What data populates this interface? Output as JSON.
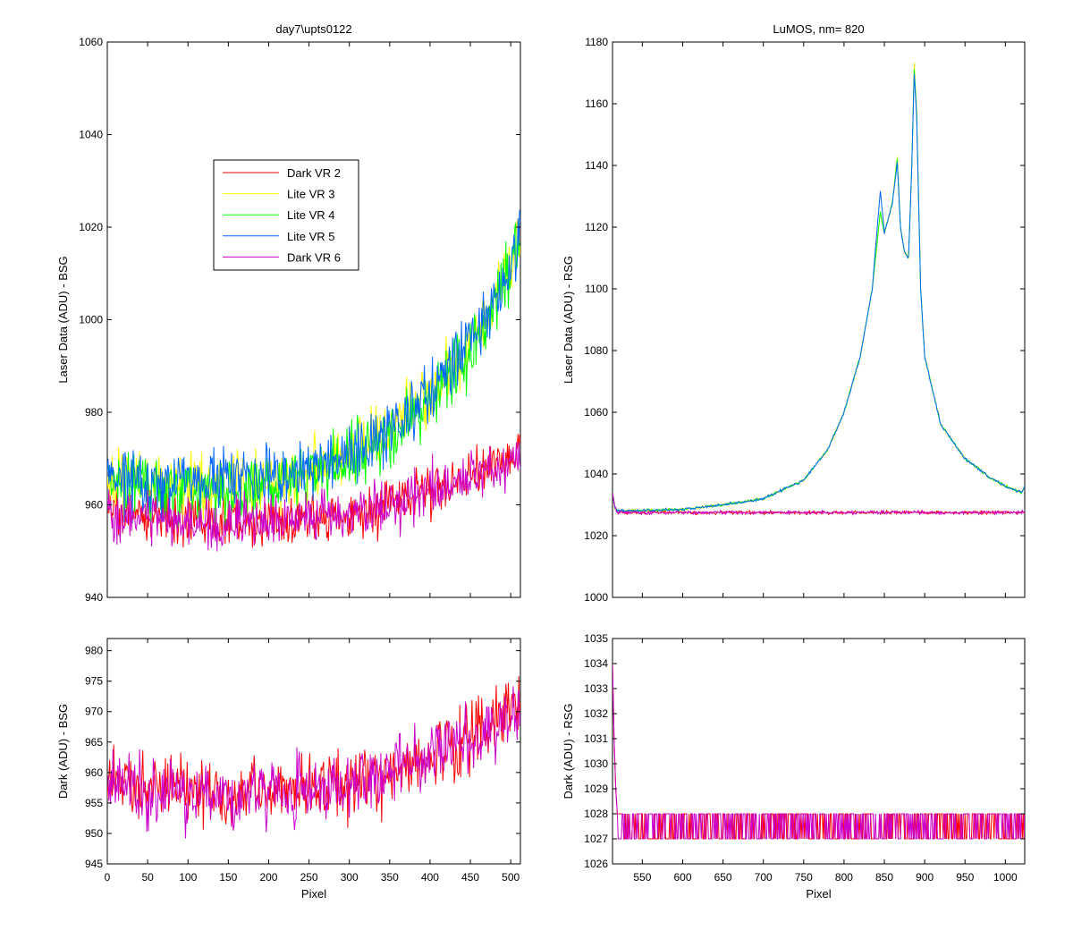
{
  "chart_data": [
    {
      "id": "top-left",
      "type": "line",
      "title": "day7\\upts0122",
      "xlabel": "",
      "ylabel": "Laser Data (ADU) - BSG",
      "xlim": [
        0,
        512
      ],
      "ylim": [
        940,
        1060
      ],
      "xticks": [
        0,
        50,
        100,
        150,
        200,
        250,
        300,
        350,
        400,
        450,
        500
      ],
      "show_xtick_labels": false,
      "yticks": [
        940,
        960,
        980,
        1000,
        1020,
        1040,
        1060
      ],
      "grid": false,
      "legend": {
        "placement": "upper-left-inside",
        "entries": [
          {
            "label": "Dark VR 2",
            "color": "#ff0000"
          },
          {
            "label": "Lite VR 3",
            "color": "#ffff00"
          },
          {
            "label": "Lite VR 4",
            "color": "#00ff00"
          },
          {
            "label": "Lite VR 5",
            "color": "#0066ff"
          },
          {
            "label": "Dark VR 6",
            "color": "#cc00cc"
          }
        ]
      },
      "series": [
        {
          "name": "Dark VR 2",
          "color": "#ff0000",
          "x": [
            0,
            50,
            100,
            150,
            200,
            250,
            300,
            350,
            400,
            450,
            500,
            512
          ],
          "y": [
            959,
            958,
            957,
            956,
            957,
            957,
            958,
            960,
            963,
            966,
            970,
            971
          ],
          "noise": 5
        },
        {
          "name": "Lite VR 3",
          "color": "#ffff00",
          "x": [
            0,
            50,
            100,
            150,
            200,
            250,
            300,
            350,
            400,
            450,
            500,
            512
          ],
          "y": [
            966,
            965,
            964,
            964,
            965,
            967,
            971,
            976,
            984,
            994,
            1010,
            1020
          ],
          "noise": 6
        },
        {
          "name": "Lite VR 4",
          "color": "#00ff00",
          "x": [
            0,
            50,
            100,
            150,
            200,
            250,
            300,
            350,
            400,
            450,
            500,
            512
          ],
          "y": [
            965,
            964,
            963,
            963,
            964,
            966,
            970,
            975,
            983,
            993,
            1010,
            1019
          ],
          "noise": 6
        },
        {
          "name": "Lite VR 5",
          "color": "#0066ff",
          "x": [
            0,
            50,
            100,
            150,
            200,
            250,
            300,
            350,
            400,
            450,
            500,
            512
          ],
          "y": [
            966,
            965,
            965,
            965,
            966,
            968,
            971,
            976,
            984,
            995,
            1011,
            1020
          ],
          "noise": 6
        },
        {
          "name": "Dark VR 6",
          "color": "#cc00cc",
          "x": [
            0,
            50,
            100,
            150,
            200,
            250,
            300,
            350,
            400,
            450,
            500,
            512
          ],
          "y": [
            958,
            957,
            956,
            956,
            957,
            957,
            958,
            960,
            963,
            966,
            969,
            970
          ],
          "noise": 5
        }
      ]
    },
    {
      "id": "top-right",
      "type": "line",
      "title": "LuMOS, nm= 820",
      "xlabel": "",
      "ylabel": "Laser Data (ADU) - RSG",
      "xlim": [
        513,
        1024
      ],
      "ylim": [
        1000,
        1180
      ],
      "xticks": [
        550,
        600,
        650,
        700,
        750,
        800,
        850,
        900,
        950,
        1000
      ],
      "show_xtick_labels": false,
      "yticks": [
        1000,
        1020,
        1040,
        1060,
        1080,
        1100,
        1120,
        1140,
        1160,
        1180
      ],
      "grid": false,
      "series": [
        {
          "name": "Dark VR 2",
          "color": "#ff0000",
          "x": [
            513,
            516,
            520,
            1024
          ],
          "y": [
            1034,
            1029,
            1027.5,
            1027.5
          ],
          "noise": 0.5
        },
        {
          "name": "Lite VR 3",
          "color": "#ffff00",
          "x": [
            513,
            516,
            520,
            600,
            650,
            700,
            750,
            780,
            800,
            820,
            835,
            845,
            850,
            860,
            866,
            870,
            875,
            880,
            884,
            887,
            890,
            895,
            900,
            920,
            950,
            980,
            1000,
            1020,
            1024
          ],
          "y": [
            1034,
            1029,
            1028,
            1028.5,
            1030,
            1032,
            1038,
            1048,
            1060,
            1078,
            1100,
            1125,
            1118,
            1128,
            1143,
            1120,
            1112,
            1110,
            1140,
            1173,
            1158,
            1100,
            1078,
            1056,
            1045,
            1039,
            1036,
            1034,
            1036
          ],
          "noise": 0.4
        },
        {
          "name": "Lite VR 4",
          "color": "#00ff00",
          "x": [
            513,
            516,
            520,
            600,
            650,
            700,
            750,
            780,
            800,
            820,
            835,
            845,
            850,
            860,
            866,
            870,
            875,
            880,
            884,
            887,
            890,
            895,
            900,
            920,
            950,
            980,
            1000,
            1020,
            1024
          ],
          "y": [
            1034,
            1029,
            1028,
            1028.5,
            1030,
            1032,
            1038,
            1048,
            1060,
            1078,
            1100,
            1125,
            1118,
            1128,
            1142,
            1120,
            1112,
            1110,
            1140,
            1171,
            1157,
            1100,
            1078,
            1056,
            1045,
            1039,
            1036,
            1034,
            1036
          ],
          "noise": 0.4
        },
        {
          "name": "Lite VR 5",
          "color": "#0066ff",
          "x": [
            513,
            516,
            520,
            600,
            650,
            700,
            750,
            780,
            800,
            820,
            835,
            845,
            850,
            860,
            866,
            870,
            875,
            880,
            884,
            887,
            890,
            895,
            900,
            920,
            950,
            980,
            1000,
            1020,
            1024
          ],
          "y": [
            1034,
            1029,
            1028,
            1028.5,
            1030,
            1032,
            1038,
            1048,
            1060,
            1078,
            1100,
            1132,
            1118,
            1128,
            1141,
            1120,
            1112,
            1110,
            1140,
            1170,
            1156,
            1100,
            1078,
            1056,
            1045,
            1039,
            1036,
            1034,
            1036
          ],
          "noise": 0.4
        },
        {
          "name": "Dark VR 6",
          "color": "#cc00cc",
          "x": [
            513,
            516,
            520,
            1024
          ],
          "y": [
            1034,
            1029,
            1027.5,
            1027.5
          ],
          "noise": 0.5
        }
      ]
    },
    {
      "id": "bottom-left",
      "type": "line",
      "title": "",
      "xlabel": "Pixel",
      "ylabel": "Dark (ADU) - BSG",
      "xlim": [
        0,
        512
      ],
      "ylim": [
        945,
        982
      ],
      "xticks": [
        0,
        50,
        100,
        150,
        200,
        250,
        300,
        350,
        400,
        450,
        500
      ],
      "show_xtick_labels": true,
      "yticks": [
        945,
        950,
        955,
        960,
        965,
        970,
        975,
        980
      ],
      "grid": false,
      "series": [
        {
          "name": "Dark VR 2",
          "color": "#ff0000",
          "x": [
            0,
            50,
            100,
            150,
            200,
            250,
            300,
            350,
            400,
            450,
            500,
            512
          ],
          "y": [
            959,
            958,
            957,
            956,
            957,
            957,
            958,
            960,
            963,
            966,
            970,
            971
          ],
          "noise": 5
        },
        {
          "name": "Dark VR 6",
          "color": "#cc00cc",
          "x": [
            0,
            50,
            100,
            150,
            200,
            250,
            300,
            350,
            400,
            450,
            500,
            512
          ],
          "y": [
            958,
            957,
            956,
            956,
            957,
            957,
            958,
            960,
            963,
            966,
            969,
            970
          ],
          "noise": 5
        }
      ]
    },
    {
      "id": "bottom-right",
      "type": "line",
      "title": "",
      "xlabel": "Pixel",
      "ylabel": "Dark (ADU) - RSG",
      "xlim": [
        513,
        1024
      ],
      "ylim": [
        1026,
        1035
      ],
      "xticks": [
        550,
        600,
        650,
        700,
        750,
        800,
        850,
        900,
        950,
        1000
      ],
      "show_xtick_labels": true,
      "yticks": [
        1026,
        1027,
        1028,
        1029,
        1030,
        1031,
        1032,
        1033,
        1034,
        1035
      ],
      "grid": false,
      "series": [
        {
          "name": "Dark VR 2",
          "color": "#ff0000",
          "x": [
            513,
            515,
            517,
            519,
            1024
          ],
          "y": [
            1034,
            1031,
            1029,
            1028,
            1028
          ],
          "levels": [
            1027,
            1028
          ]
        },
        {
          "name": "Dark VR 6",
          "color": "#cc00cc",
          "x": [
            513,
            515,
            517,
            519,
            1024
          ],
          "y": [
            1034,
            1031,
            1029,
            1028,
            1028
          ],
          "levels": [
            1027,
            1028
          ]
        }
      ]
    }
  ]
}
